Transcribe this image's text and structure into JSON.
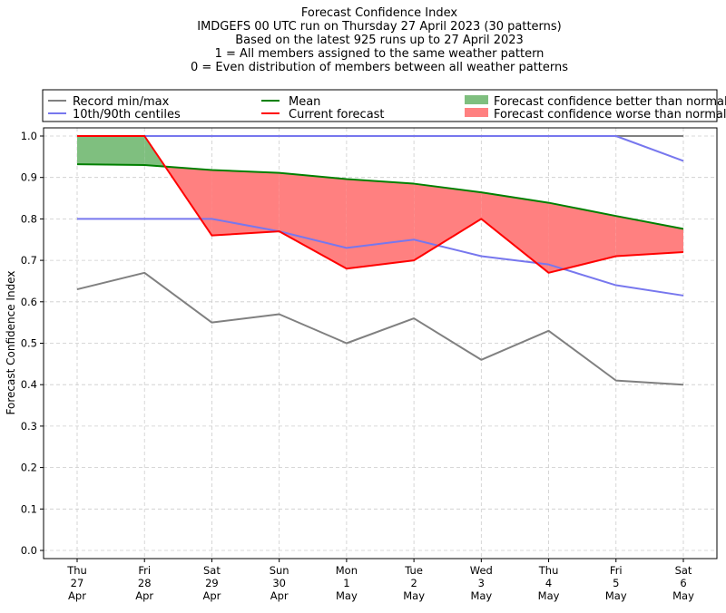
{
  "chart_data": {
    "type": "line",
    "title_lines": [
      "Forecast Confidence Index",
      "IMDGEFS 00 UTC run on Thursday 27 April 2023 (30 patterns)",
      "Based on the latest 925 runs up to 27 April 2023",
      "1 = All members assigned to the same weather pattern",
      "0 = Even distribution of members between all weather patterns"
    ],
    "ylabel": "Forecast Confidence Index",
    "ylim": [
      0,
      1.0
    ],
    "yticks": [
      "0.0",
      "0.1",
      "0.2",
      "0.3",
      "0.4",
      "0.5",
      "0.6",
      "0.7",
      "0.8",
      "0.9",
      "1.0"
    ],
    "grid": true,
    "legend_position": "top",
    "categories": [
      [
        "Thu",
        "27",
        "Apr"
      ],
      [
        "Fri",
        "28",
        "Apr"
      ],
      [
        "Sat",
        "29",
        "Apr"
      ],
      [
        "Sun",
        "30",
        "Apr"
      ],
      [
        "Mon",
        "1",
        "May"
      ],
      [
        "Tue",
        "2",
        "May"
      ],
      [
        "Wed",
        "3",
        "May"
      ],
      [
        "Thu",
        "4",
        "May"
      ],
      [
        "Fri",
        "5",
        "May"
      ],
      [
        "Sat",
        "6",
        "May"
      ]
    ],
    "series": {
      "record_min": [
        0.63,
        0.67,
        0.55,
        0.57,
        0.5,
        0.56,
        0.46,
        0.53,
        0.41,
        0.4
      ],
      "record_max": [
        1.0,
        1.0,
        1.0,
        1.0,
        1.0,
        1.0,
        1.0,
        1.0,
        1.0,
        1.0
      ],
      "p10": [
        0.8,
        0.8,
        0.8,
        0.77,
        0.73,
        0.75,
        0.71,
        0.69,
        0.64,
        0.615
      ],
      "p90": [
        1.0,
        1.0,
        1.0,
        1.0,
        1.0,
        1.0,
        1.0,
        1.0,
        1.0,
        0.94
      ],
      "mean": [
        0.932,
        0.93,
        0.918,
        0.911,
        0.896,
        0.885,
        0.864,
        0.839,
        0.807,
        0.776
      ],
      "current": [
        1.0,
        1.0,
        0.76,
        0.77,
        0.68,
        0.7,
        0.8,
        0.67,
        0.71,
        0.72
      ]
    },
    "legend": [
      {
        "label": "Record min/max",
        "kind": "line",
        "color": "#808080"
      },
      {
        "label": "10th/90th centiles",
        "kind": "line",
        "color": "#7777ee"
      },
      {
        "label": "Mean",
        "kind": "line",
        "color": "#008000"
      },
      {
        "label": "Current forecast",
        "kind": "line",
        "color": "#ff0000"
      },
      {
        "label": "Forecast confidence better than normal",
        "kind": "patch",
        "color": "#7fbf7f"
      },
      {
        "label": "Forecast confidence worse than normal",
        "kind": "patch",
        "color": "#ff8080"
      }
    ],
    "colors": {
      "record": "#808080",
      "centile": "#7777ee",
      "mean": "#008000",
      "current": "#ff0000",
      "better_fill": "#7fbf7f",
      "worse_fill": "#ff8080",
      "grid": "#cccccc"
    }
  }
}
